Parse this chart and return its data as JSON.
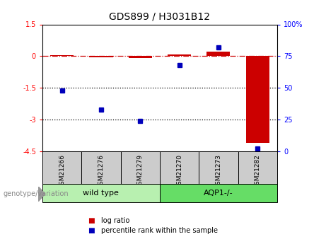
{
  "title": "GDS899 / H3031B12",
  "samples": [
    "GSM21266",
    "GSM21276",
    "GSM21279",
    "GSM21270",
    "GSM21273",
    "GSM21282"
  ],
  "log_ratio": [
    0.05,
    -0.05,
    -0.1,
    0.07,
    0.22,
    -4.1
  ],
  "percentile_rank": [
    48,
    33,
    24,
    68,
    82,
    2
  ],
  "ylim_left": [
    -4.5,
    1.5
  ],
  "ylim_right": [
    0,
    100
  ],
  "left_yticks": [
    1.5,
    0,
    -1.5,
    -3.0,
    -4.5
  ],
  "left_yticklabels": [
    "1.5",
    "0",
    "-1.5",
    "-3",
    "-4.5"
  ],
  "right_yticks": [
    100,
    75,
    50,
    25,
    0
  ],
  "right_yticklabels": [
    "100%",
    "75",
    "50",
    "25",
    "0"
  ],
  "hlines": [
    -1.5,
    -3.0
  ],
  "groups": [
    {
      "label": "wild type",
      "indices": [
        0,
        1,
        2
      ],
      "color": "#b8f0b0",
      "dark_color": "#66cc66"
    },
    {
      "label": "AQP1-/-",
      "indices": [
        3,
        4,
        5
      ],
      "color": "#66dd66",
      "dark_color": "#33aa33"
    }
  ],
  "bar_width": 0.6,
  "log_ratio_color": "#cc0000",
  "percentile_color": "#0000bb",
  "bg_color": "#ffffff",
  "sample_box_color": "#cccccc",
  "legend_items": [
    {
      "label": "log ratio",
      "color": "#cc0000"
    },
    {
      "label": "percentile rank within the sample",
      "color": "#0000bb"
    }
  ],
  "genotype_label": "genotype/variation"
}
